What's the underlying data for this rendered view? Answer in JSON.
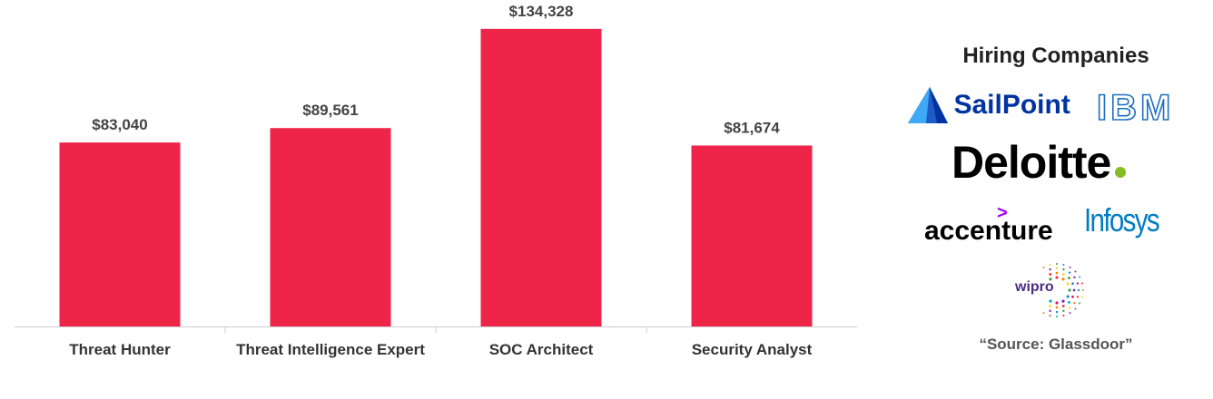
{
  "chart_data": {
    "type": "bar",
    "categories": [
      "Threat Hunter",
      "Threat Intelligence Expert",
      "SOC Architect",
      "Security Analyst"
    ],
    "values": [
      83040,
      89561,
      134328,
      81674
    ],
    "value_labels": [
      "$83,040",
      "$89,561",
      "$134,328",
      "$81,674"
    ],
    "ylim": [
      0,
      140000
    ],
    "grid": false,
    "bar_color": "#EE2449"
  },
  "panel": {
    "title": "Hiring Companies",
    "logos": {
      "sailpoint": "SailPoint",
      "ibm": "IBM",
      "deloitte": "Deloitte",
      "accenture": "accenture",
      "infosys": "Infosys",
      "wipro": "wipro"
    },
    "source": "“Source: Glassdoor”",
    "colors": {
      "sailpoint_blue": "#0033A1",
      "ibm_blue": "#1F70C1",
      "deloitte_green": "#86BC25",
      "accenture_purple": "#A100FF",
      "infosys_blue": "#007CC3"
    }
  }
}
